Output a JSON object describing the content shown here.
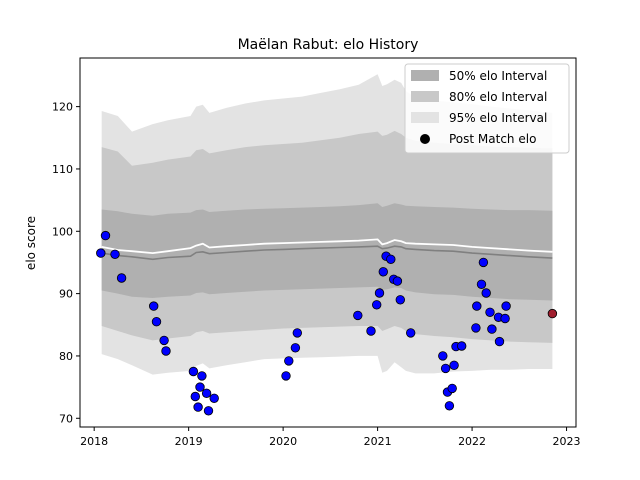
{
  "chart_data": {
    "type": "line",
    "title": "Maëlan Rabut: elo History",
    "xlabel": "",
    "ylabel": "elo score",
    "xlim": [
      2017.85,
      2023.1
    ],
    "ylim": [
      68.6,
      127.8
    ],
    "x_ticks": [
      2018,
      2019,
      2020,
      2021,
      2022,
      2023
    ],
    "x_tick_labels": [
      "2018",
      "2019",
      "2020",
      "2021",
      "2022",
      "2023"
    ],
    "y_ticks": [
      70,
      80,
      90,
      100,
      110,
      120
    ],
    "y_tick_labels": [
      "70",
      "80",
      "90",
      "100",
      "110",
      "120"
    ],
    "grid": false,
    "legend_position": "top-right",
    "legend": {
      "band50": "50% elo Interval",
      "band80": "80% elo Interval",
      "band95": "95% elo Interval",
      "points": "Post Match elo"
    },
    "colors": {
      "band50": "#b0b0b0",
      "band80": "#c8c8c8",
      "band95": "#e3e3e3",
      "mean_line": "#808080",
      "median_line": "#ffffff",
      "point": "#0000ff",
      "point_edge": "#000000",
      "last_point": "#a01e2e"
    },
    "intervals": {
      "x": [
        2018.08,
        2018.25,
        2018.4,
        2018.62,
        2018.78,
        2019.02,
        2019.08,
        2019.15,
        2019.22,
        2019.4,
        2019.6,
        2019.8,
        2020.0,
        2020.2,
        2020.4,
        2020.6,
        2020.8,
        2021.0,
        2021.05,
        2021.1,
        2021.18,
        2021.25,
        2021.3,
        2021.4,
        2021.6,
        2021.8,
        2022.0,
        2022.2,
        2022.4,
        2022.6,
        2022.85
      ],
      "mean": [
        96.5,
        96.1,
        95.9,
        95.5,
        95.8,
        96.0,
        96.6,
        96.7,
        96.4,
        96.6,
        96.8,
        97.0,
        97.1,
        97.2,
        97.3,
        97.4,
        97.5,
        97.6,
        97.2,
        97.3,
        97.6,
        97.5,
        97.2,
        97.1,
        96.9,
        96.8,
        96.5,
        96.3,
        96.1,
        95.9,
        95.7
      ],
      "median": [
        97.5,
        97.0,
        96.8,
        96.5,
        96.8,
        97.3,
        97.7,
        98.0,
        97.4,
        97.6,
        97.8,
        98.0,
        98.1,
        98.2,
        98.3,
        98.4,
        98.5,
        98.7,
        97.9,
        98.1,
        98.6,
        98.4,
        98.1,
        98.0,
        97.9,
        97.8,
        97.5,
        97.3,
        97.1,
        96.9,
        96.7
      ],
      "p50_low": [
        90.5,
        90.0,
        89.5,
        89.3,
        89.5,
        89.7,
        90.1,
        90.2,
        89.9,
        90.1,
        90.3,
        90.5,
        90.6,
        90.7,
        90.8,
        90.9,
        91.0,
        91.1,
        90.6,
        90.7,
        91.0,
        90.9,
        90.5,
        90.2,
        89.9,
        89.8,
        89.5,
        89.3,
        89.1,
        89.0,
        88.9
      ],
      "p50_high": [
        103.5,
        103.2,
        102.8,
        102.5,
        102.8,
        103.0,
        103.4,
        103.5,
        103.1,
        103.3,
        103.5,
        103.6,
        103.7,
        103.8,
        103.9,
        104.0,
        104.2,
        104.5,
        103.9,
        104.1,
        104.5,
        104.3,
        104.1,
        104.0,
        103.9,
        103.8,
        103.6,
        103.5,
        103.4,
        103.4,
        103.3
      ],
      "p80_low": [
        84.8,
        84.0,
        83.3,
        82.5,
        82.8,
        83.2,
        83.8,
        84.0,
        83.6,
        83.8,
        84.0,
        84.2,
        84.4,
        84.5,
        84.6,
        84.7,
        84.8,
        84.8,
        84.0,
        84.3,
        84.8,
        84.5,
        84.0,
        83.5,
        83.2,
        83.0,
        82.7,
        82.5,
        82.3,
        82.2,
        82.1
      ],
      "p80_high": [
        113.5,
        112.8,
        110.5,
        111.0,
        111.5,
        112.0,
        113.0,
        113.2,
        112.5,
        113.0,
        113.5,
        113.8,
        114.0,
        114.2,
        114.6,
        115.0,
        115.6,
        116.0,
        115.3,
        115.5,
        116.1,
        115.6,
        115.0,
        114.5,
        114.2,
        114.0,
        113.8,
        113.6,
        113.5,
        113.4,
        113.3
      ],
      "p95_low": [
        80.3,
        79.5,
        78.5,
        77.0,
        77.3,
        77.6,
        78.4,
        78.8,
        78.0,
        78.5,
        79.0,
        79.5,
        79.6,
        79.7,
        79.8,
        79.9,
        80.0,
        80.0,
        77.3,
        77.6,
        79.0,
        78.2,
        77.6,
        77.2,
        77.2,
        77.5,
        77.6,
        77.8,
        77.8,
        77.9,
        77.9
      ],
      "p95_high": [
        119.3,
        118.5,
        116.0,
        117.2,
        117.8,
        118.5,
        120.0,
        120.3,
        119.0,
        119.8,
        120.5,
        121.0,
        121.3,
        121.6,
        122.2,
        122.8,
        123.5,
        125.2,
        123.3,
        123.6,
        124.3,
        123.8,
        122.5,
        121.5,
        121.0,
        120.7,
        120.4,
        120.0,
        119.7,
        119.4,
        119.0
      ]
    },
    "points": {
      "x": [
        2018.07,
        2018.12,
        2018.22,
        2018.29,
        2018.63,
        2018.66,
        2018.74,
        2018.76,
        2019.05,
        2019.07,
        2019.1,
        2019.12,
        2019.14,
        2019.19,
        2019.21,
        2019.27,
        2020.03,
        2020.06,
        2020.13,
        2020.15,
        2020.79,
        2020.93,
        2020.99,
        2021.02,
        2021.06,
        2021.09,
        2021.14,
        2021.17,
        2021.21,
        2021.24,
        2021.35,
        2021.69,
        2021.72,
        2021.74,
        2021.76,
        2021.79,
        2021.81,
        2021.83,
        2021.89,
        2022.04,
        2022.05,
        2022.1,
        2022.12,
        2022.15,
        2022.19,
        2022.21,
        2022.28,
        2022.29,
        2022.35,
        2022.36
      ],
      "y": [
        96.5,
        99.3,
        96.3,
        92.5,
        88.0,
        85.5,
        82.5,
        80.8,
        77.5,
        73.5,
        71.8,
        75.0,
        76.8,
        74.0,
        71.2,
        73.2,
        76.8,
        79.2,
        81.3,
        83.7,
        86.5,
        84.0,
        88.2,
        90.1,
        93.5,
        96.0,
        95.5,
        92.3,
        92.0,
        89.0,
        83.7,
        80.0,
        78.0,
        74.2,
        72.0,
        74.8,
        78.5,
        81.5,
        81.6,
        84.5,
        88.0,
        91.5,
        95.0,
        90.1,
        87.0,
        84.3,
        86.2,
        82.3,
        86.0,
        88.0
      ],
      "last": {
        "x": 2022.85,
        "y": 86.8
      }
    }
  }
}
